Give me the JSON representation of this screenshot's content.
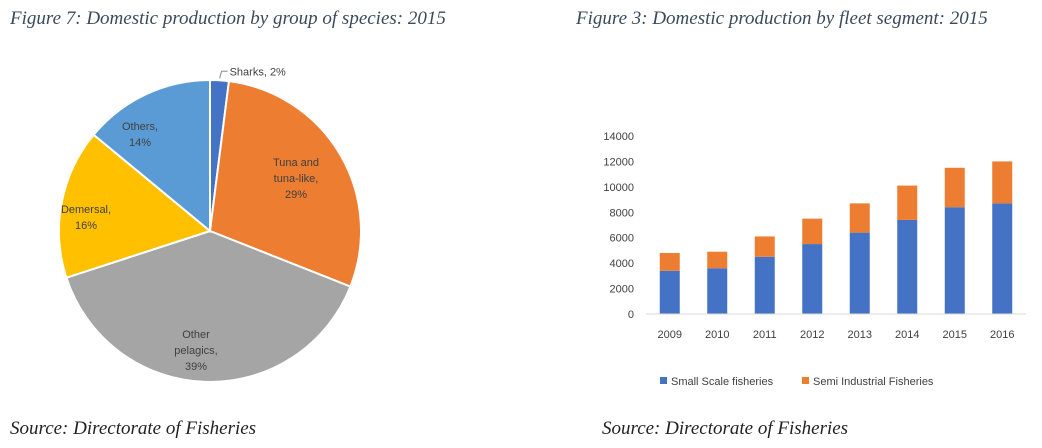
{
  "left_figure": {
    "title": "Figure 7: Domestic production by group of species: 2015",
    "source": "Source: Directorate of Fisheries"
  },
  "right_figure": {
    "title": "Figure 3: Domestic production by fleet segment: 2015",
    "source": "Source: Directorate of Fisheries"
  },
  "chart_data": [
    {
      "type": "pie",
      "slices": [
        {
          "label": "Sharks",
          "value": 2,
          "color": "#4472C4",
          "label_lines": [
            "Sharks, 2%"
          ]
        },
        {
          "label": "Tuna and tuna-like",
          "value": 29,
          "color": "#ED7D31",
          "label_lines": [
            "Tuna and",
            "tuna-like,",
            "29%"
          ]
        },
        {
          "label": "Other pelagics",
          "value": 39,
          "color": "#A5A5A5",
          "label_lines": [
            "Other",
            "pelagics,",
            "39%"
          ]
        },
        {
          "label": "Demersal",
          "value": 16,
          "color": "#FFC000",
          "label_lines": [
            "Demersal,",
            "16%"
          ]
        },
        {
          "label": "Others",
          "value": 14,
          "color": "#5B9BD5",
          "label_lines": [
            "Others,",
            "14%"
          ]
        }
      ]
    },
    {
      "type": "bar",
      "stacked": true,
      "categories": [
        "2009",
        "2010",
        "2011",
        "2012",
        "2013",
        "2014",
        "2015",
        "2016"
      ],
      "series": [
        {
          "name": "Small Scale fisheries",
          "color": "#4472C4",
          "values": [
            3400,
            3600,
            4500,
            5500,
            6400,
            7400,
            8400,
            8700
          ]
        },
        {
          "name": "Semi Industrial Fisheries",
          "color": "#ED7D31",
          "values": [
            1400,
            1300,
            1600,
            2000,
            2300,
            2700,
            3100,
            3300
          ]
        }
      ],
      "ylim": [
        0,
        14000
      ],
      "yticks": [
        "0",
        "2000",
        "4000",
        "6000",
        "8000",
        "10000",
        "12000",
        "14000"
      ],
      "grid": false,
      "legend": "bottom"
    }
  ]
}
